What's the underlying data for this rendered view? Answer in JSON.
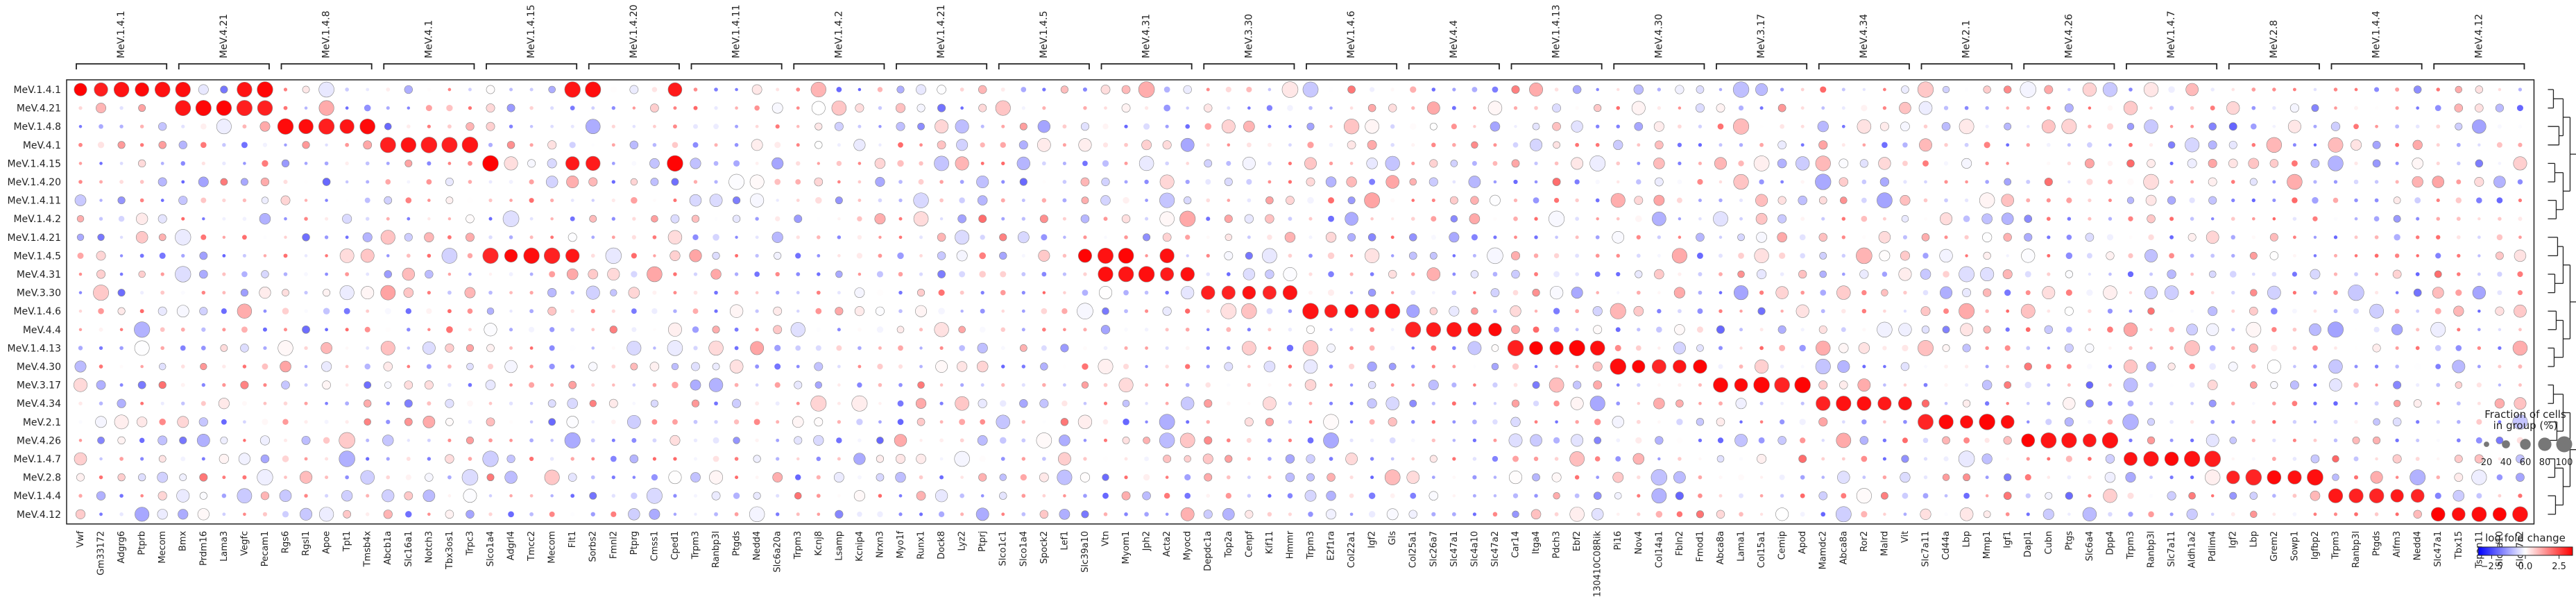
{
  "chart_data": {
    "type": "dotplot",
    "title": "",
    "rows": [
      "MeV.1.4.1",
      "MeV.4.21",
      "MeV.1.4.8",
      "MeV.4.1",
      "MeV.1.4.15",
      "MeV.1.4.20",
      "MeV.1.4.11",
      "MeV.1.4.2",
      "MeV.1.4.21",
      "MeV.1.4.5",
      "MeV.4.31",
      "MeV.3.30",
      "MeV.1.4.6",
      "MeV.4.4",
      "MeV.1.4.13",
      "MeV.4.30",
      "MeV.3.17",
      "MeV.4.34",
      "MeV.2.1",
      "MeV.4.26",
      "MeV.1.4.7",
      "MeV.2.8",
      "MeV.1.4.4",
      "MeV.4.12"
    ],
    "groups": [
      {
        "label": "MeV.1.4.1",
        "genes": [
          "Vwf",
          "Gm33172",
          "Adgrg6",
          "Ptprb",
          "Mecom"
        ]
      },
      {
        "label": "MeV.4.21",
        "genes": [
          "Bmx",
          "Prdm16",
          "Lama3",
          "Vegfc",
          "Pecam1"
        ]
      },
      {
        "label": "MeV.1.4.8",
        "genes": [
          "Rgs6",
          "Rgsl1",
          "Apoe",
          "Tpt1",
          "Tmsb4x"
        ]
      },
      {
        "label": "MeV.4.1",
        "genes": [
          "Abcb1a",
          "Slc16a1",
          "Notch3",
          "Tbx3os1",
          "Trpc3"
        ]
      },
      {
        "label": "MeV.1.4.15",
        "genes": [
          "Slco1a4",
          "Adgrl4",
          "Tmcc2",
          "Mecom",
          "Flt1"
        ]
      },
      {
        "label": "MeV.1.4.20",
        "genes": [
          "Sorbs2",
          "Fmnl2",
          "Ptprg",
          "Cmss1",
          "Cped1"
        ]
      },
      {
        "label": "MeV.1.4.11",
        "genes": [
          "Trpm3",
          "Ranbp3l",
          "Ptgds",
          "Nedd4",
          "Slc6a20a"
        ]
      },
      {
        "label": "MeV.1.4.2",
        "genes": [
          "Trpm3",
          "Kcnj8",
          "Lsamp",
          "Kcnip4",
          "Nrxn3"
        ]
      },
      {
        "label": "MeV.1.4.21",
        "genes": [
          "Myo1f",
          "Runx1",
          "Dock8",
          "Lyz2",
          "Ptprj"
        ]
      },
      {
        "label": "MeV.1.4.5",
        "genes": [
          "Slco1c1",
          "Slco1a4",
          "Spock2",
          "Lef1",
          "Slc39a10"
        ]
      },
      {
        "label": "MeV.4.31",
        "genes": [
          "Vtn",
          "Myom1",
          "Jph2",
          "Acta2",
          "Myocd"
        ]
      },
      {
        "label": "MeV.3.30",
        "genes": [
          "Depdc1a",
          "Top2a",
          "Cenpf",
          "Kif11",
          "Hmmr"
        ]
      },
      {
        "label": "MeV.1.4.6",
        "genes": [
          "Trpm3",
          "E2f1ra",
          "Col22a1",
          "Igf2",
          "Gls"
        ]
      },
      {
        "label": "MeV.4.4",
        "genes": [
          "Col25a1",
          "Slc26a7",
          "Slc47a1",
          "Slc4a10",
          "Slc47a2"
        ]
      },
      {
        "label": "MeV.1.4.13",
        "genes": [
          "Car14",
          "Itga4",
          "Pdch3",
          "Ebf2",
          "9130410C08Rik"
        ]
      },
      {
        "label": "MeV.4.30",
        "genes": [
          "Pi16",
          "Nov4",
          "Col14a1",
          "Fbln2",
          "Fmod1"
        ]
      },
      {
        "label": "MeV.3.17",
        "genes": [
          "Abca8a",
          "Lama1",
          "Col15a1",
          "Cemip",
          "Apod"
        ]
      },
      {
        "label": "MeV.4.34",
        "genes": [
          "Mamdc2",
          "Abca8a",
          "Ror2",
          "Malrd",
          "Vit"
        ]
      },
      {
        "label": "MeV.2.1",
        "genes": [
          "Slc7a11",
          "Cd44a",
          "Lbp",
          "Mmp1",
          "Igf1"
        ]
      },
      {
        "label": "MeV.4.26",
        "genes": [
          "Dapl1",
          "Cubn",
          "Ptgs",
          "Slc6a4",
          "Dpp4"
        ]
      },
      {
        "label": "MeV.1.4.7",
        "genes": [
          "Trpm3",
          "Ranbp3l",
          "Slc7a11",
          "Aldh1a2",
          "Pdlim4"
        ]
      },
      {
        "label": "MeV.2.8",
        "genes": [
          "Igf2",
          "Lbp",
          "Grem2",
          "Sowp1",
          "Igfbp2"
        ]
      },
      {
        "label": "MeV.1.4.4",
        "genes": [
          "Trpm3",
          "Ranbp3l",
          "Ptgds",
          "Aifm3",
          "Nedd4"
        ]
      },
      {
        "label": "MeV.4.12",
        "genes": [
          "Slc47a1",
          "Tbx15",
          "Tspan11",
          "Slc4a10",
          "Slc47a2"
        ]
      }
    ],
    "strong": [
      [
        [
          0,
          0
        ],
        [
          0,
          1
        ],
        [
          0,
          2
        ],
        [
          0,
          3
        ],
        [
          0,
          4
        ],
        [
          0,
          5
        ],
        [
          0,
          8
        ],
        [
          0,
          9
        ],
        [
          0,
          24
        ],
        [
          0,
          25
        ],
        [
          0,
          29
        ],
        [
          1,
          5
        ],
        [
          1,
          6
        ],
        [
          1,
          7
        ],
        [
          1,
          8
        ],
        [
          1,
          9
        ],
        [
          2,
          10
        ],
        [
          2,
          11
        ],
        [
          2,
          12
        ],
        [
          2,
          13
        ],
        [
          2,
          14
        ],
        [
          3,
          15
        ],
        [
          3,
          16
        ],
        [
          3,
          17
        ],
        [
          3,
          18
        ],
        [
          3,
          19
        ],
        [
          4,
          20
        ],
        [
          4,
          24
        ],
        [
          4,
          25
        ],
        [
          4,
          29
        ],
        [
          9,
          20
        ],
        [
          9,
          21
        ],
        [
          9,
          22
        ],
        [
          9,
          23
        ],
        [
          9,
          24
        ],
        [
          9,
          49
        ],
        [
          9,
          50
        ],
        [
          9,
          51
        ],
        [
          9,
          53
        ],
        [
          10,
          50
        ],
        [
          10,
          51
        ],
        [
          10,
          52
        ],
        [
          10,
          53
        ],
        [
          10,
          54
        ],
        [
          11,
          55
        ],
        [
          11,
          56
        ],
        [
          11,
          57
        ],
        [
          11,
          58
        ],
        [
          11,
          59
        ],
        [
          12,
          60
        ],
        [
          12,
          61
        ],
        [
          12,
          62
        ],
        [
          12,
          63
        ],
        [
          12,
          64
        ],
        [
          13,
          65
        ],
        [
          13,
          66
        ],
        [
          13,
          67
        ],
        [
          13,
          68
        ],
        [
          13,
          69
        ],
        [
          14,
          70
        ],
        [
          14,
          71
        ],
        [
          14,
          72
        ],
        [
          14,
          73
        ],
        [
          14,
          74
        ],
        [
          15,
          75
        ],
        [
          15,
          76
        ],
        [
          15,
          77
        ],
        [
          15,
          78
        ],
        [
          15,
          79
        ],
        [
          16,
          80
        ],
        [
          16,
          81
        ],
        [
          16,
          82
        ],
        [
          16,
          83
        ],
        [
          16,
          84
        ],
        [
          17,
          85
        ],
        [
          17,
          86
        ],
        [
          17,
          87
        ],
        [
          17,
          88
        ],
        [
          17,
          89
        ],
        [
          18,
          90
        ],
        [
          18,
          91
        ],
        [
          18,
          92
        ],
        [
          18,
          93
        ],
        [
          18,
          94
        ],
        [
          19,
          95
        ],
        [
          19,
          96
        ],
        [
          19,
          97
        ],
        [
          19,
          98
        ],
        [
          19,
          99
        ],
        [
          20,
          100
        ],
        [
          20,
          101
        ],
        [
          20,
          102
        ],
        [
          20,
          103
        ],
        [
          20,
          104
        ],
        [
          21,
          105
        ],
        [
          21,
          106
        ],
        [
          21,
          107
        ],
        [
          21,
          108
        ],
        [
          21,
          109
        ],
        [
          22,
          110
        ],
        [
          22,
          111
        ],
        [
          22,
          112
        ],
        [
          22,
          113
        ],
        [
          22,
          114
        ],
        [
          23,
          115
        ],
        [
          23,
          116
        ],
        [
          23,
          117
        ],
        [
          23,
          118
        ],
        [
          23,
          119
        ]
      ]
    ],
    "legend_size": {
      "title": "Fraction of cells\nin group (%)",
      "ticks": [
        "20",
        "40",
        "60",
        "80",
        "100"
      ]
    },
    "legend_color": {
      "title": "log fold change",
      "ticks": [
        "−2.5",
        "0.0",
        "2.5"
      ],
      "min": -3.5,
      "max": 3.5
    },
    "colors": {
      "high": "#e8000b",
      "low": "#0a0aff",
      "mid": "#ffffff",
      "edge": "#777777"
    }
  }
}
